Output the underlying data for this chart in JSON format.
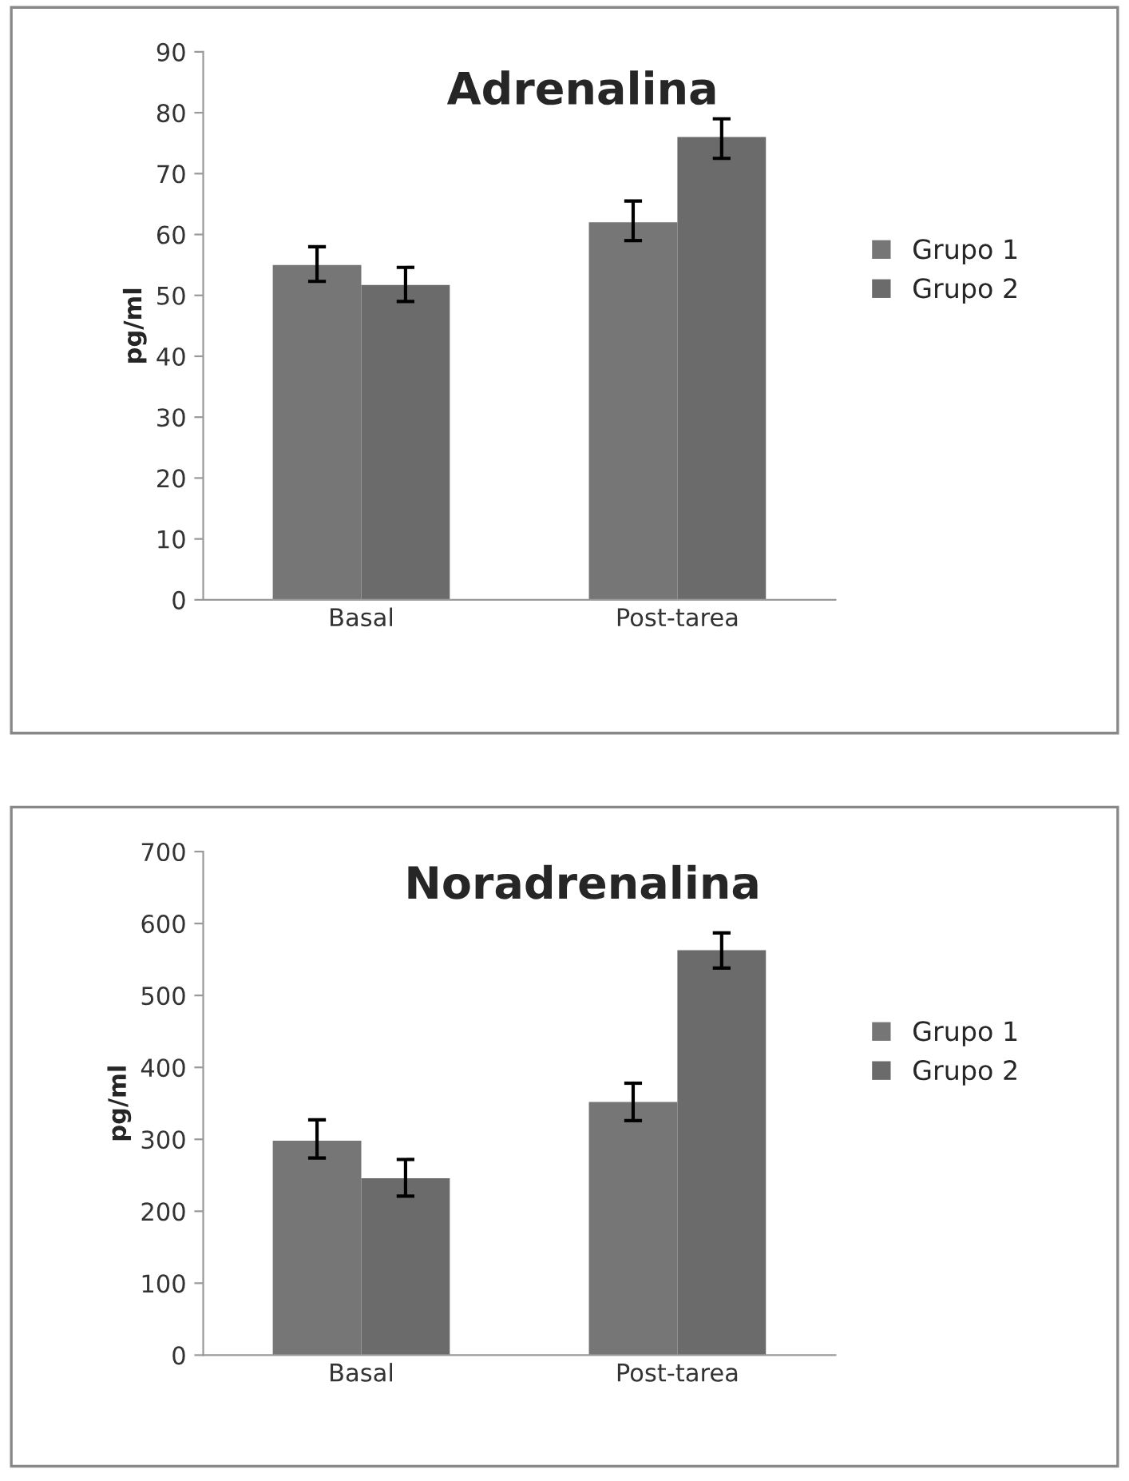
{
  "chart_data": [
    {
      "type": "bar",
      "title": "Adrenalina",
      "ylabel": "pg/ml",
      "categories": [
        "Basal",
        "Post-tarea"
      ],
      "ylim": [
        0,
        90
      ],
      "yticks": [
        0,
        10,
        20,
        30,
        40,
        50,
        60,
        70,
        80,
        90
      ],
      "legend": "right",
      "grid": false,
      "series": [
        {
          "name": "Grupo 1",
          "color": "#767676",
          "values": [
            55,
            62
          ],
          "errors": [
            [
              52.3,
              58
            ],
            [
              59,
              65.5
            ]
          ]
        },
        {
          "name": "Grupo 2",
          "color": "#6b6b6b",
          "values": [
            51.7,
            76
          ],
          "errors": [
            [
              49,
              54.6
            ],
            [
              72.5,
              79
            ]
          ]
        }
      ]
    },
    {
      "type": "bar",
      "title": "Noradrenalina",
      "ylabel": "pg/ml",
      "categories": [
        "Basal",
        "Post-tarea"
      ],
      "ylim": [
        0,
        700
      ],
      "yticks": [
        0,
        100,
        200,
        300,
        400,
        500,
        600,
        700
      ],
      "legend": "right",
      "grid": false,
      "series": [
        {
          "name": "Grupo 1",
          "color": "#767676",
          "values": [
            298,
            352
          ],
          "errors": [
            [
              274,
              327
            ],
            [
              326,
              378
            ]
          ]
        },
        {
          "name": "Grupo 2",
          "color": "#6b6b6b",
          "values": [
            246,
            563
          ],
          "errors": [
            [
              221,
              272
            ],
            [
              538,
              587
            ]
          ]
        }
      ]
    }
  ]
}
